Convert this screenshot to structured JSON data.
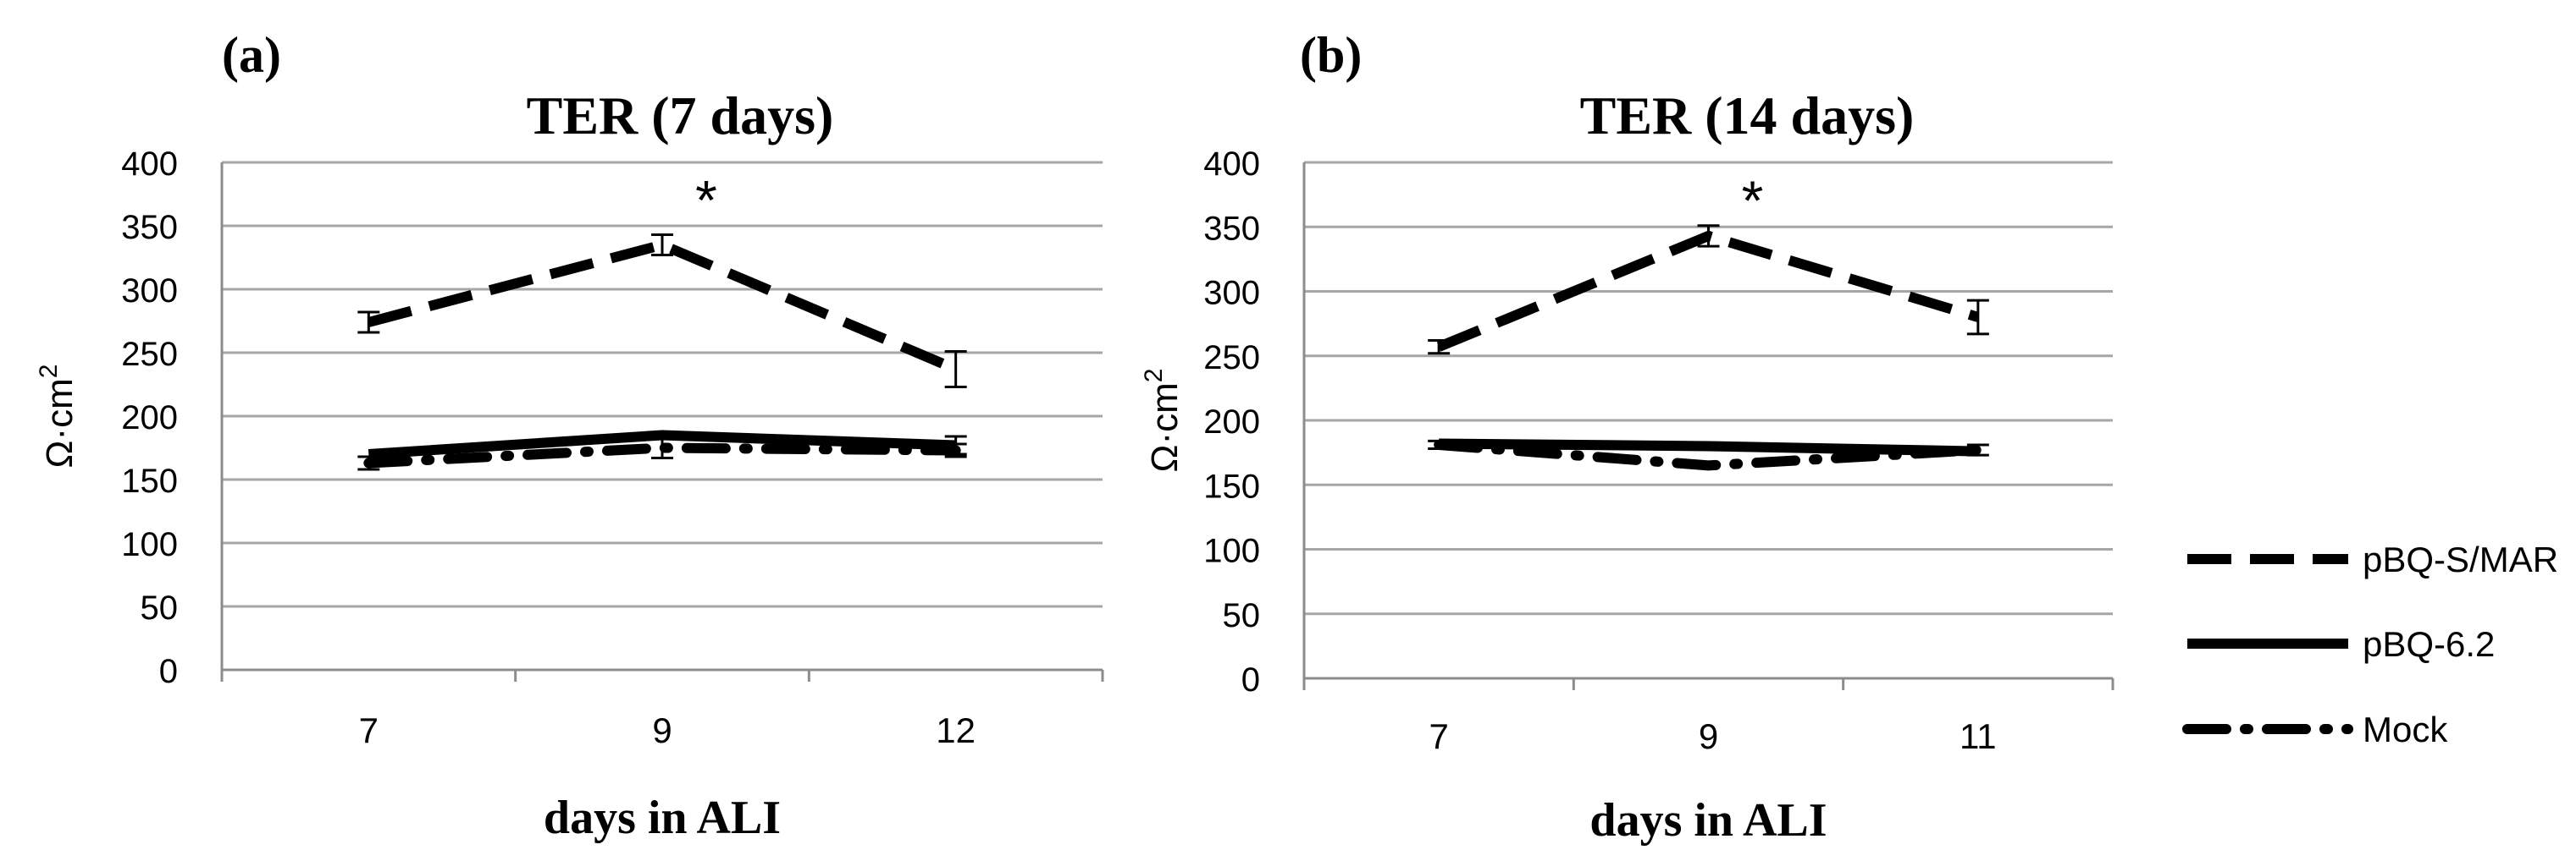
{
  "chart_data": [
    {
      "type": "line",
      "panel_label": "(a)",
      "title": "TER (7 days)",
      "xlabel": "days in ALI",
      "ylabel": "Ω·cm",
      "ylabel_sup": "2",
      "categories": [
        "7",
        "9",
        "12"
      ],
      "ylim": [
        0,
        400
      ],
      "yticks": [
        0,
        50,
        100,
        150,
        200,
        250,
        300,
        350,
        400
      ],
      "grid": true,
      "annotation": {
        "text": "*",
        "category_index": 1,
        "value": 375
      },
      "series": [
        {
          "name": "pBQ-S/MAR",
          "style": "dashed",
          "values": [
            274,
            335,
            237
          ],
          "errors": [
            8,
            8,
            14
          ]
        },
        {
          "name": "pBQ-6.2",
          "style": "solid",
          "values": [
            170,
            185,
            177
          ],
          "errors": [
            null,
            null,
            7
          ]
        },
        {
          "name": "Mock",
          "style": "dash-dot",
          "values": [
            163,
            175,
            173
          ],
          "errors": [
            5,
            8,
            5
          ]
        }
      ]
    },
    {
      "type": "line",
      "panel_label": "(b)",
      "title": "TER (14 days)",
      "xlabel": "days in ALI",
      "ylabel": "Ω·cm",
      "ylabel_sup": "2",
      "categories": [
        "7",
        "9",
        "11"
      ],
      "ylim": [
        0,
        400
      ],
      "yticks": [
        0,
        50,
        100,
        150,
        200,
        250,
        300,
        350,
        400
      ],
      "grid": true,
      "annotation": {
        "text": "*",
        "category_index": 1,
        "value": 375
      },
      "series": [
        {
          "name": "pBQ-S/MAR",
          "style": "dashed",
          "values": [
            257,
            343,
            280
          ],
          "errors": [
            5,
            8,
            13
          ]
        },
        {
          "name": "pBQ-6.2",
          "style": "solid",
          "values": [
            182,
            180,
            176
          ],
          "errors": [
            null,
            null,
            null
          ]
        },
        {
          "name": "Mock",
          "style": "dash-dot",
          "values": [
            181,
            165,
            177
          ],
          "errors": [
            3,
            null,
            4
          ]
        }
      ]
    }
  ],
  "legend": {
    "placement": "right",
    "entries": [
      {
        "name": "pBQ-S/MAR",
        "style": "dashed"
      },
      {
        "name": "pBQ-6.2",
        "style": "solid"
      },
      {
        "name": "Mock",
        "style": "dash-dot"
      }
    ]
  }
}
